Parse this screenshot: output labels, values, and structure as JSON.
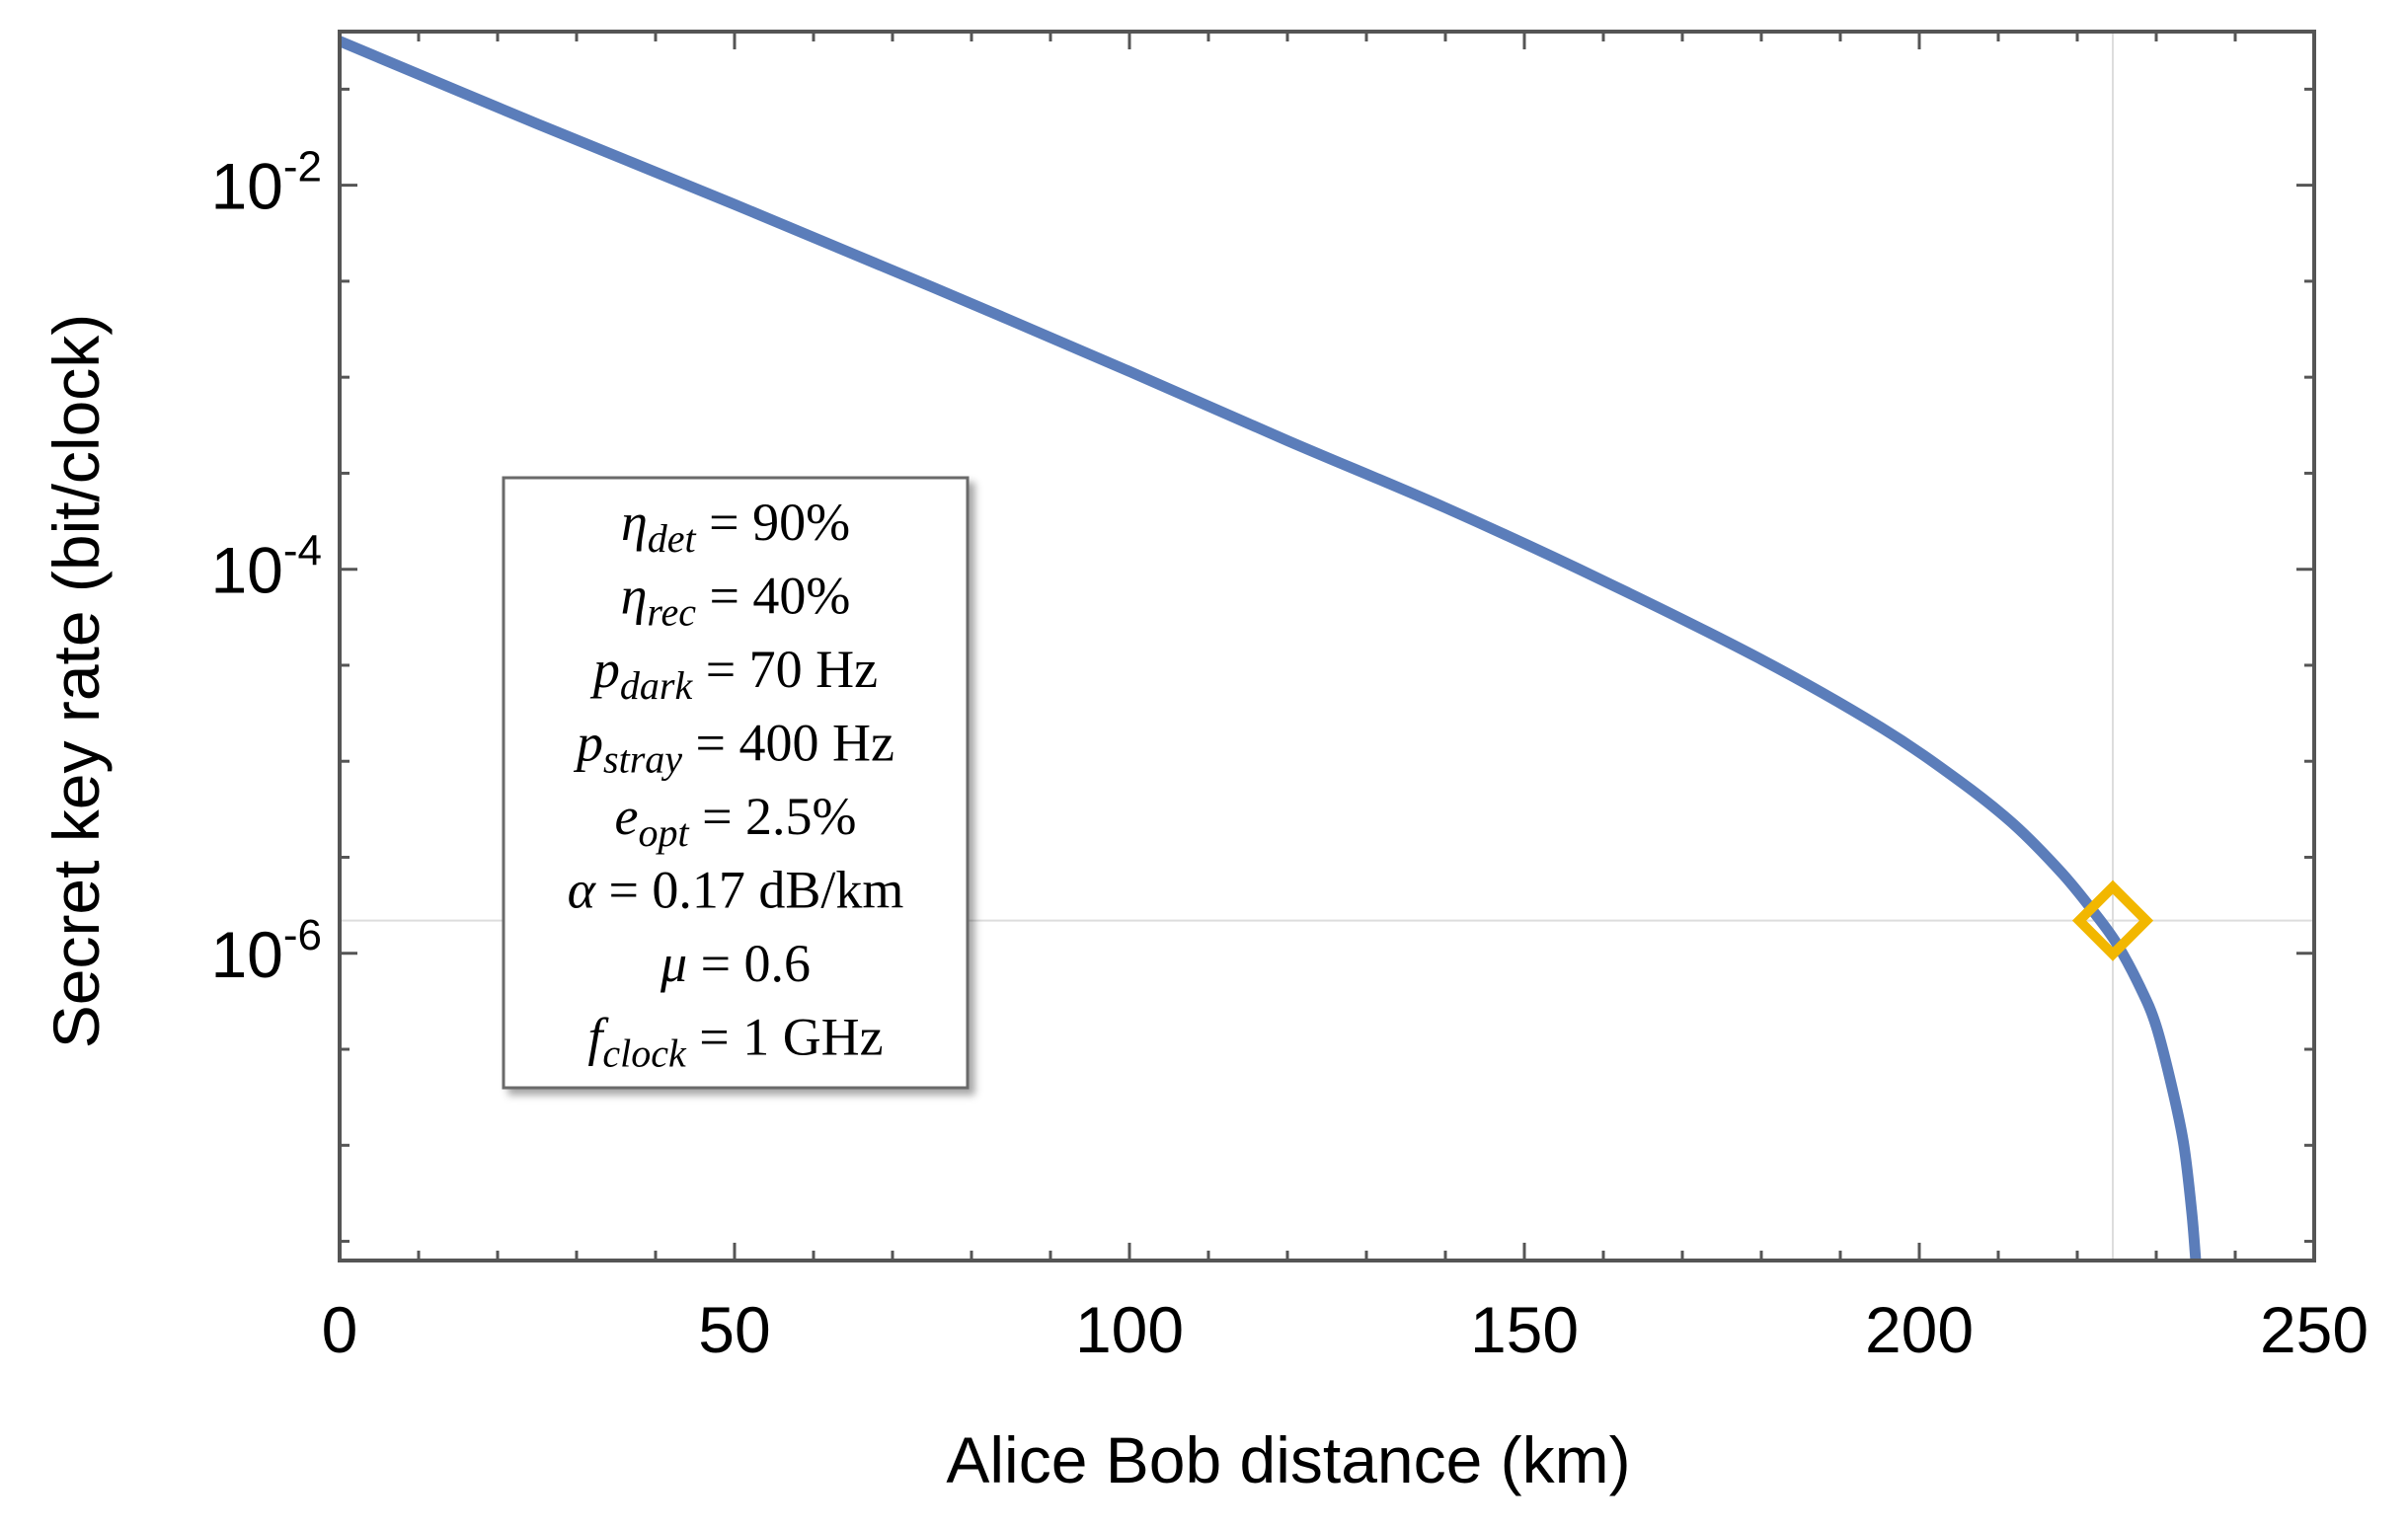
{
  "chart_data": {
    "type": "line",
    "title": "",
    "xlabel": "Alice Bob distance (km)",
    "ylabel": "Secret key rate (bit/clock)",
    "xlim": [
      0,
      250
    ],
    "ylog_range": [
      -7.6,
      -1.2
    ],
    "y_scale": "log",
    "grid": false,
    "x_ticks": [
      {
        "value": 0,
        "label": "0"
      },
      {
        "value": 50,
        "label": "50"
      },
      {
        "value": 100,
        "label": "100"
      },
      {
        "value": 150,
        "label": "150"
      },
      {
        "value": 200,
        "label": "200"
      },
      {
        "value": 250,
        "label": "250"
      }
    ],
    "y_ticks": [
      {
        "log": -2,
        "base": "10",
        "exp": "-2"
      },
      {
        "log": -4,
        "base": "10",
        "exp": "-4"
      },
      {
        "log": -6,
        "base": "10",
        "exp": "-6"
      }
    ],
    "series": [
      {
        "name": "Secret key rate",
        "color": "#5b7dba",
        "x": [
          0,
          25,
          50,
          75,
          100,
          120,
          140,
          160,
          180,
          195,
          205,
          212,
          218,
          222,
          225,
          228,
          230,
          232,
          233.5,
          234.5,
          235
        ],
        "log_y": [
          -1.25,
          -1.68,
          -2.1,
          -2.53,
          -2.97,
          -3.33,
          -3.68,
          -4.06,
          -4.47,
          -4.82,
          -5.1,
          -5.33,
          -5.58,
          -5.78,
          -5.95,
          -6.18,
          -6.38,
          -6.7,
          -7.0,
          -7.35,
          -7.6
        ]
      }
    ],
    "marker": {
      "name": "highlighted point",
      "x": 224.5,
      "log_y": -5.83,
      "shape": "diamond",
      "color": "#f2b700"
    },
    "reference_lines": {
      "x": 224.5,
      "log_y": -5.83,
      "color": "#dddddd"
    },
    "annotation_box": {
      "lines": [
        {
          "sym": "η",
          "sub": "det",
          "rest": " = 90%"
        },
        {
          "sym": "η",
          "sub": "rec",
          "rest": " = 40%"
        },
        {
          "sym": "p",
          "sub": "dark",
          "rest": " = 70 Hz"
        },
        {
          "sym": "p",
          "sub": "stray",
          "rest": " = 400 Hz"
        },
        {
          "sym": "e",
          "sub": "opt",
          "rest": " = 2.5%"
        },
        {
          "sym": "α",
          "sub": "",
          "rest": " = 0.17 dB/km"
        },
        {
          "sym": "μ",
          "sub": "",
          "rest": " = 0.6"
        },
        {
          "sym": "f",
          "sub": "clock",
          "rest": " = 1 GHz"
        }
      ]
    }
  }
}
